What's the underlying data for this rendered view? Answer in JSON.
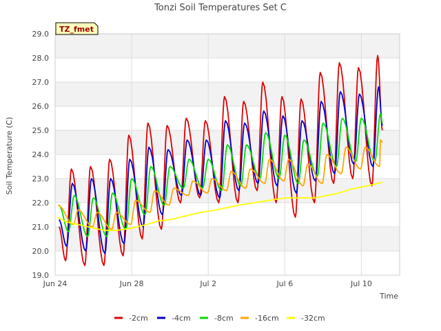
{
  "chart_data": {
    "type": "line",
    "title": "Tonzi Soil Temperatures Set C",
    "xlabel": "Time",
    "ylabel": "Soil Temperature (C)",
    "annotation": "TZ_fmet",
    "x_range_days": [
      0,
      18
    ],
    "ylim": [
      19.0,
      29.0
    ],
    "y_ticks": [
      "19.0",
      "20.0",
      "21.0",
      "22.0",
      "23.0",
      "24.0",
      "25.0",
      "26.0",
      "27.0",
      "28.0",
      "29.0"
    ],
    "x_ticks": [
      {
        "label": "Jun 24",
        "day": 0
      },
      {
        "label": "Jun 28",
        "day": 4
      },
      {
        "label": "Jul 2",
        "day": 8
      },
      {
        "label": "Jul 6",
        "day": 12
      },
      {
        "label": "Jul 10",
        "day": 16
      }
    ],
    "grid": true,
    "legend_position": "bottom",
    "series": [
      {
        "name": "-2cm",
        "color": "#dd0000",
        "peaks": [
          [
            0.85,
            23.4
          ],
          [
            1.85,
            23.5
          ],
          [
            2.85,
            23.8
          ],
          [
            3.85,
            24.8
          ],
          [
            4.85,
            25.3
          ],
          [
            5.85,
            25.2
          ],
          [
            6.85,
            25.5
          ],
          [
            7.85,
            25.4
          ],
          [
            8.85,
            26.4
          ],
          [
            9.85,
            26.2
          ],
          [
            10.85,
            27.0
          ],
          [
            11.85,
            26.4
          ],
          [
            12.85,
            26.3
          ],
          [
            13.85,
            27.4
          ],
          [
            14.85,
            27.8
          ],
          [
            15.85,
            27.6
          ],
          [
            16.85,
            28.1
          ]
        ],
        "troughs": [
          [
            0.2,
            21.0
          ],
          [
            0.55,
            19.6
          ],
          [
            1.55,
            19.4
          ],
          [
            2.55,
            19.4
          ],
          [
            3.55,
            19.8
          ],
          [
            4.55,
            20.5
          ],
          [
            5.55,
            20.9
          ],
          [
            6.55,
            22.0
          ],
          [
            7.55,
            22.2
          ],
          [
            8.55,
            22.0
          ],
          [
            9.55,
            22.0
          ],
          [
            10.55,
            22.5
          ],
          [
            11.55,
            22.0
          ],
          [
            12.55,
            21.4
          ],
          [
            13.55,
            22.0
          ],
          [
            14.55,
            22.8
          ],
          [
            15.55,
            23.0
          ],
          [
            16.55,
            22.7
          ],
          [
            17.1,
            25.0
          ]
        ]
      },
      {
        "name": "-4cm",
        "color": "#0000cc",
        "peaks": [
          [
            0.9,
            22.8
          ],
          [
            1.9,
            23.0
          ],
          [
            2.9,
            23.0
          ],
          [
            3.9,
            23.8
          ],
          [
            4.9,
            24.3
          ],
          [
            5.9,
            24.2
          ],
          [
            6.9,
            24.6
          ],
          [
            7.9,
            24.6
          ],
          [
            8.9,
            25.4
          ],
          [
            9.9,
            25.3
          ],
          [
            10.9,
            25.8
          ],
          [
            11.9,
            25.6
          ],
          [
            12.9,
            25.4
          ],
          [
            13.9,
            26.2
          ],
          [
            14.9,
            26.6
          ],
          [
            15.9,
            26.5
          ],
          [
            16.9,
            26.8
          ]
        ],
        "troughs": [
          [
            0.2,
            21.3
          ],
          [
            0.6,
            20.2
          ],
          [
            1.6,
            20.0
          ],
          [
            2.6,
            19.9
          ],
          [
            3.6,
            20.3
          ],
          [
            4.6,
            21.0
          ],
          [
            5.6,
            21.5
          ],
          [
            6.6,
            22.3
          ],
          [
            7.6,
            22.3
          ],
          [
            8.6,
            22.2
          ],
          [
            9.6,
            22.5
          ],
          [
            10.6,
            22.8
          ],
          [
            11.6,
            22.7
          ],
          [
            12.6,
            22.4
          ],
          [
            13.6,
            22.9
          ],
          [
            14.6,
            23.2
          ],
          [
            15.6,
            23.6
          ],
          [
            16.6,
            23.5
          ],
          [
            17.1,
            25.2
          ]
        ]
      },
      {
        "name": "-8cm",
        "color": "#00dd00",
        "peaks": [
          [
            1.0,
            22.3
          ],
          [
            2.0,
            22.2
          ],
          [
            3.0,
            22.4
          ],
          [
            4.0,
            23.0
          ],
          [
            5.0,
            23.5
          ],
          [
            6.0,
            23.5
          ],
          [
            7.0,
            23.8
          ],
          [
            8.0,
            23.8
          ],
          [
            9.0,
            24.4
          ],
          [
            10.0,
            24.4
          ],
          [
            11.0,
            24.9
          ],
          [
            12.0,
            24.8
          ],
          [
            13.0,
            24.6
          ],
          [
            14.0,
            25.3
          ],
          [
            15.0,
            25.5
          ],
          [
            16.0,
            25.5
          ],
          [
            17.0,
            25.7
          ]
        ],
        "troughs": [
          [
            0.2,
            21.9
          ],
          [
            0.7,
            20.8
          ],
          [
            1.7,
            20.6
          ],
          [
            2.7,
            20.6
          ],
          [
            3.7,
            20.9
          ],
          [
            4.7,
            21.5
          ],
          [
            5.7,
            21.9
          ],
          [
            6.7,
            22.6
          ],
          [
            7.7,
            22.6
          ],
          [
            8.7,
            22.5
          ],
          [
            9.7,
            22.7
          ],
          [
            10.7,
            23.0
          ],
          [
            11.7,
            23.0
          ],
          [
            12.7,
            22.8
          ],
          [
            13.7,
            23.1
          ],
          [
            14.7,
            23.5
          ],
          [
            15.7,
            23.7
          ],
          [
            16.7,
            23.7
          ],
          [
            17.1,
            25.3
          ]
        ]
      },
      {
        "name": "-16cm",
        "color": "#ffa500",
        "peaks": [
          [
            1.2,
            21.7
          ],
          [
            2.2,
            21.6
          ],
          [
            3.2,
            21.6
          ],
          [
            4.2,
            22.1
          ],
          [
            5.2,
            22.5
          ],
          [
            6.2,
            22.6
          ],
          [
            7.2,
            22.9
          ],
          [
            8.2,
            23.0
          ],
          [
            9.2,
            23.3
          ],
          [
            10.2,
            23.4
          ],
          [
            11.2,
            23.8
          ],
          [
            12.2,
            23.8
          ],
          [
            13.2,
            23.6
          ],
          [
            14.2,
            24.0
          ],
          [
            15.2,
            24.3
          ],
          [
            16.2,
            24.3
          ],
          [
            17.0,
            24.6
          ]
        ],
        "troughs": [
          [
            0.15,
            21.9
          ],
          [
            0.95,
            21.1
          ],
          [
            1.95,
            21.0
          ],
          [
            2.95,
            20.9
          ],
          [
            3.95,
            21.1
          ],
          [
            4.95,
            21.6
          ],
          [
            5.95,
            21.9
          ],
          [
            6.95,
            22.3
          ],
          [
            7.95,
            22.4
          ],
          [
            8.95,
            22.5
          ],
          [
            9.95,
            22.6
          ],
          [
            10.95,
            22.8
          ],
          [
            11.95,
            22.9
          ],
          [
            12.95,
            22.7
          ],
          [
            13.95,
            22.8
          ],
          [
            14.95,
            23.2
          ],
          [
            15.95,
            23.4
          ],
          [
            16.95,
            23.5
          ],
          [
            17.1,
            24.5
          ]
        ]
      },
      {
        "name": "-32cm",
        "color": "#ffff00",
        "points": [
          [
            0.1,
            21.4
          ],
          [
            0.6,
            21.2
          ],
          [
            1.2,
            21.1
          ],
          [
            2.0,
            20.95
          ],
          [
            2.6,
            20.85
          ],
          [
            3.2,
            20.85
          ],
          [
            4.0,
            20.95
          ],
          [
            4.8,
            21.1
          ],
          [
            5.4,
            21.25
          ],
          [
            6.0,
            21.3
          ],
          [
            6.8,
            21.45
          ],
          [
            7.6,
            21.6
          ],
          [
            8.4,
            21.7
          ],
          [
            9.0,
            21.8
          ],
          [
            9.6,
            21.9
          ],
          [
            10.4,
            22.0
          ],
          [
            11.2,
            22.1
          ],
          [
            12.0,
            22.2
          ],
          [
            12.8,
            22.2
          ],
          [
            13.6,
            22.2
          ],
          [
            14.2,
            22.3
          ],
          [
            14.8,
            22.4
          ],
          [
            15.4,
            22.55
          ],
          [
            16.0,
            22.65
          ],
          [
            16.6,
            22.75
          ],
          [
            17.1,
            22.85
          ]
        ]
      }
    ]
  }
}
